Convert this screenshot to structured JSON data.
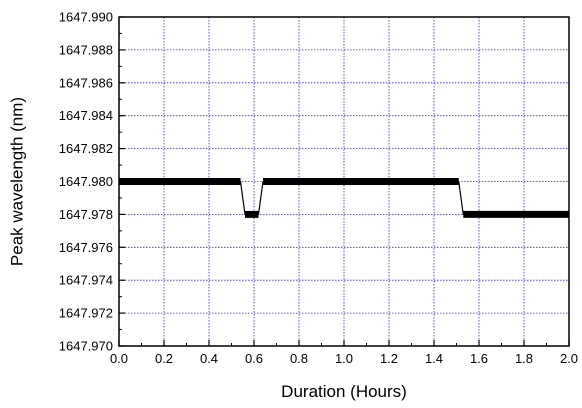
{
  "chart_data": {
    "type": "line",
    "title": "",
    "xlabel": "Duration (Hours)",
    "ylabel": "Peak wavelength (nm)",
    "xlim": [
      0.0,
      2.0
    ],
    "ylim": [
      1647.97,
      1647.99
    ],
    "xticks": [
      "0.0",
      "0.2",
      "0.4",
      "0.6",
      "0.8",
      "1.0",
      "1.2",
      "1.4",
      "1.6",
      "1.8",
      "2.0"
    ],
    "yticks": [
      "1647.970",
      "1647.972",
      "1647.974",
      "1647.976",
      "1647.978",
      "1647.980",
      "1647.982",
      "1647.984",
      "1647.986",
      "1647.988",
      "1647.990"
    ],
    "grid": true,
    "grid_color": "#2a2ad6",
    "line_color": "#000000",
    "series": [
      {
        "x": [
          0.0,
          0.54,
          0.56,
          0.62,
          0.64,
          1.51,
          1.53,
          2.0
        ],
        "y": [
          1647.98,
          1647.98,
          1647.978,
          1647.978,
          1647.98,
          1647.98,
          1647.978,
          1647.978
        ]
      }
    ]
  }
}
